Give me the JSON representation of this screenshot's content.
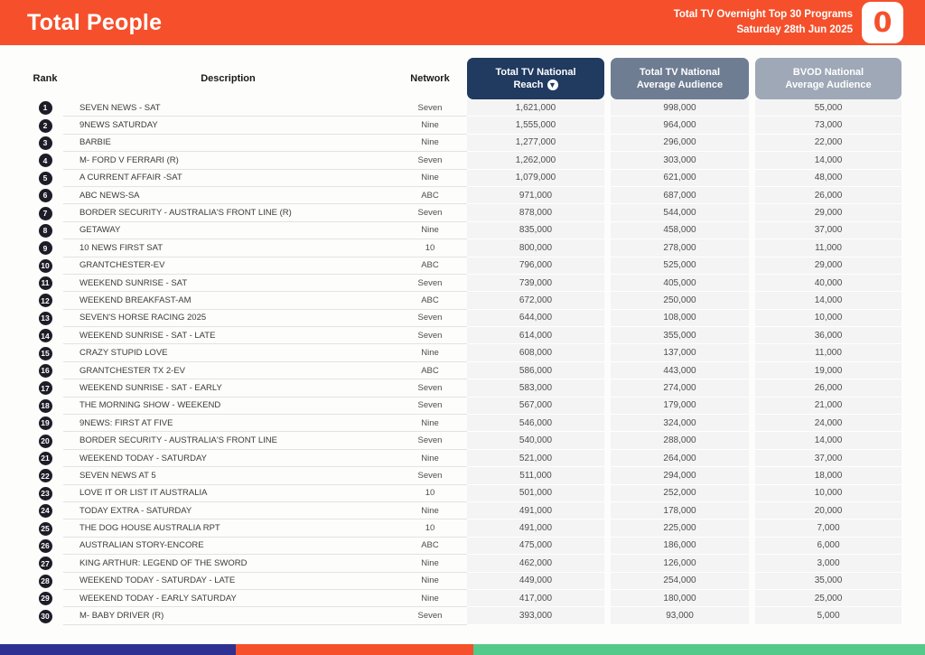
{
  "header": {
    "title": "Total People",
    "subtitle_line1": "Total TV Overnight Top 30 Programs",
    "subtitle_line2": "Saturday 28th Jun 2025",
    "logo_glyph": "0"
  },
  "colors": {
    "banner_bg": "#F5502B",
    "reach_header_bg": "#203A60",
    "avg_header_bg": "#6F7D93",
    "bvod_header_bg": "#9FA8B6",
    "rank_badge_bg": "#1D1D27",
    "footer_blue": "#2E3192",
    "footer_orange": "#F5502B",
    "footer_green": "#55C98A"
  },
  "table": {
    "headers": {
      "rank": "Rank",
      "description": "Description",
      "network": "Network",
      "reach_line1": "Total TV National",
      "reach_line2": "Reach",
      "avg_line1": "Total TV National",
      "avg_line2": "Average Audience",
      "bvod_line1": "BVOD National",
      "bvod_line2": "Average Audience",
      "sort_icon": "arrow-down-circle"
    },
    "rows": [
      {
        "rank": "1",
        "description": "SEVEN NEWS - SAT",
        "network": "Seven",
        "reach": "1,621,000",
        "avg": "998,000",
        "bvod": "55,000"
      },
      {
        "rank": "2",
        "description": "9NEWS SATURDAY",
        "network": "Nine",
        "reach": "1,555,000",
        "avg": "964,000",
        "bvod": "73,000"
      },
      {
        "rank": "3",
        "description": "BARBIE",
        "network": "Nine",
        "reach": "1,277,000",
        "avg": "296,000",
        "bvod": "22,000"
      },
      {
        "rank": "4",
        "description": "M- FORD V FERRARI (R)",
        "network": "Seven",
        "reach": "1,262,000",
        "avg": "303,000",
        "bvod": "14,000"
      },
      {
        "rank": "5",
        "description": "A CURRENT AFFAIR -SAT",
        "network": "Nine",
        "reach": "1,079,000",
        "avg": "621,000",
        "bvod": "48,000"
      },
      {
        "rank": "6",
        "description": "ABC NEWS-SA",
        "network": "ABC",
        "reach": "971,000",
        "avg": "687,000",
        "bvod": "26,000"
      },
      {
        "rank": "7",
        "description": "BORDER SECURITY - AUSTRALIA'S FRONT LINE (R)",
        "network": "Seven",
        "reach": "878,000",
        "avg": "544,000",
        "bvod": "29,000"
      },
      {
        "rank": "8",
        "description": "GETAWAY",
        "network": "Nine",
        "reach": "835,000",
        "avg": "458,000",
        "bvod": "37,000"
      },
      {
        "rank": "9",
        "description": "10 NEWS FIRST SAT",
        "network": "10",
        "reach": "800,000",
        "avg": "278,000",
        "bvod": "11,000"
      },
      {
        "rank": "10",
        "description": "GRANTCHESTER-EV",
        "network": "ABC",
        "reach": "796,000",
        "avg": "525,000",
        "bvod": "29,000"
      },
      {
        "rank": "11",
        "description": "WEEKEND SUNRISE - SAT",
        "network": "Seven",
        "reach": "739,000",
        "avg": "405,000",
        "bvod": "40,000"
      },
      {
        "rank": "12",
        "description": "WEEKEND BREAKFAST-AM",
        "network": "ABC",
        "reach": "672,000",
        "avg": "250,000",
        "bvod": "14,000"
      },
      {
        "rank": "13",
        "description": "SEVEN'S HORSE RACING 2025",
        "network": "Seven",
        "reach": "644,000",
        "avg": "108,000",
        "bvod": "10,000"
      },
      {
        "rank": "14",
        "description": "WEEKEND SUNRISE - SAT - LATE",
        "network": "Seven",
        "reach": "614,000",
        "avg": "355,000",
        "bvod": "36,000"
      },
      {
        "rank": "15",
        "description": "CRAZY STUPID LOVE",
        "network": "Nine",
        "reach": "608,000",
        "avg": "137,000",
        "bvod": "11,000"
      },
      {
        "rank": "16",
        "description": "GRANTCHESTER TX 2-EV",
        "network": "ABC",
        "reach": "586,000",
        "avg": "443,000",
        "bvod": "19,000"
      },
      {
        "rank": "17",
        "description": "WEEKEND SUNRISE - SAT - EARLY",
        "network": "Seven",
        "reach": "583,000",
        "avg": "274,000",
        "bvod": "26,000"
      },
      {
        "rank": "18",
        "description": "THE MORNING SHOW - WEEKEND",
        "network": "Seven",
        "reach": "567,000",
        "avg": "179,000",
        "bvod": "21,000"
      },
      {
        "rank": "19",
        "description": "9NEWS: FIRST AT FIVE",
        "network": "Nine",
        "reach": "546,000",
        "avg": "324,000",
        "bvod": "24,000"
      },
      {
        "rank": "20",
        "description": "BORDER SECURITY - AUSTRALIA'S FRONT LINE",
        "network": "Seven",
        "reach": "540,000",
        "avg": "288,000",
        "bvod": "14,000"
      },
      {
        "rank": "21",
        "description": "WEEKEND TODAY - SATURDAY",
        "network": "Nine",
        "reach": "521,000",
        "avg": "264,000",
        "bvod": "37,000"
      },
      {
        "rank": "22",
        "description": "SEVEN NEWS AT 5",
        "network": "Seven",
        "reach": "511,000",
        "avg": "294,000",
        "bvod": "18,000"
      },
      {
        "rank": "23",
        "description": "LOVE IT OR LIST IT AUSTRALIA",
        "network": "10",
        "reach": "501,000",
        "avg": "252,000",
        "bvod": "10,000"
      },
      {
        "rank": "24",
        "description": "TODAY EXTRA - SATURDAY",
        "network": "Nine",
        "reach": "491,000",
        "avg": "178,000",
        "bvod": "20,000"
      },
      {
        "rank": "25",
        "description": "THE DOG HOUSE AUSTRALIA RPT",
        "network": "10",
        "reach": "491,000",
        "avg": "225,000",
        "bvod": "7,000"
      },
      {
        "rank": "26",
        "description": "AUSTRALIAN STORY-ENCORE",
        "network": "ABC",
        "reach": "475,000",
        "avg": "186,000",
        "bvod": "6,000"
      },
      {
        "rank": "27",
        "description": "KING ARTHUR: LEGEND OF THE SWORD",
        "network": "Nine",
        "reach": "462,000",
        "avg": "126,000",
        "bvod": "3,000"
      },
      {
        "rank": "28",
        "description": "WEEKEND TODAY - SATURDAY - LATE",
        "network": "Nine",
        "reach": "449,000",
        "avg": "254,000",
        "bvod": "35,000"
      },
      {
        "rank": "29",
        "description": "WEEKEND TODAY - EARLY SATURDAY",
        "network": "Nine",
        "reach": "417,000",
        "avg": "180,000",
        "bvod": "25,000"
      },
      {
        "rank": "30",
        "description": "M- BABY DRIVER (R)",
        "network": "Seven",
        "reach": "393,000",
        "avg": "93,000",
        "bvod": "5,000"
      }
    ]
  }
}
